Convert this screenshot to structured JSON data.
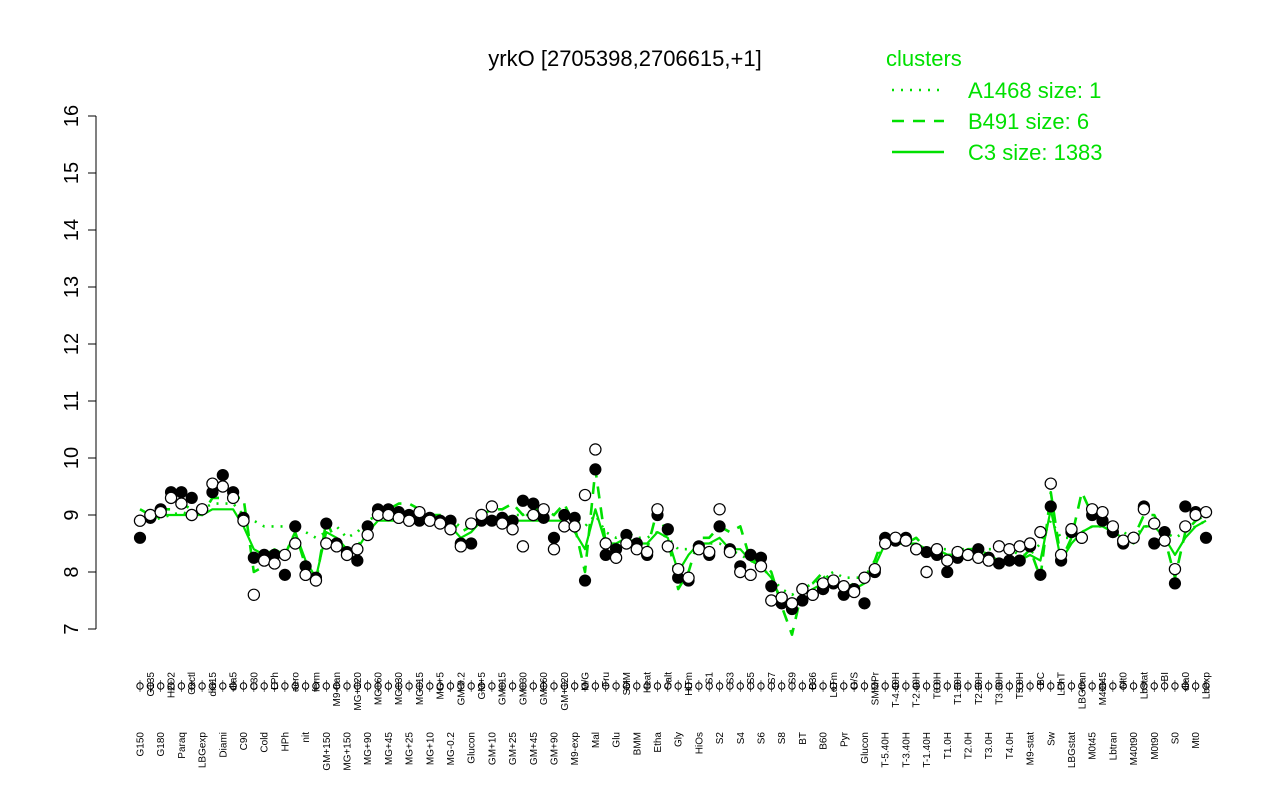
{
  "chart_data": {
    "type": "line",
    "title": "yrkO [2705398,2706615,+1]",
    "ylim": [
      7,
      16
    ],
    "yticks": [
      7,
      8,
      9,
      10,
      11,
      12,
      13,
      14,
      15,
      16
    ],
    "grid": false,
    "x_tick_labels": [
      "G150",
      "G135",
      "G180",
      "H2O2",
      "Paraq",
      "Oxctl",
      "LBGexp",
      "dia15",
      "Diami",
      "dia5",
      "C90",
      "C30",
      "Cold",
      "LPh",
      "HPh",
      "aero",
      "nit",
      "ferm",
      "GM+150",
      "M9-tran",
      "MG+150",
      "MG+120",
      "MG+90",
      "MG+60",
      "MG+45",
      "MG+30",
      "MG+25",
      "MG+15",
      "MG+10",
      "MG+5",
      "MG-0.2",
      "GM-0.2",
      "Glucon",
      "GM+5",
      "GM+10",
      "GM+15",
      "GM+25",
      "GM+30",
      "GM+45",
      "GM+60",
      "GM+90",
      "GM+120",
      "M9-exp",
      "M/G",
      "Mal",
      "Fru",
      "Glu",
      "SMM",
      "BMM",
      "Heat",
      "Etha",
      "Salt",
      "Gly",
      "HiTm",
      "HiOs",
      "S1",
      "S2",
      "S3",
      "S4",
      "S5",
      "S6",
      "S7",
      "S8",
      "S9",
      "BT",
      "B36",
      "B60",
      "LoTm",
      "Pyr",
      "G/S",
      "Glucon",
      "SMMPr",
      "T-5.40H",
      "T-4.40H",
      "T-3.40H",
      "T-2.40H",
      "T-1.40H",
      "T0.0H",
      "T1.0H",
      "T1.30H",
      "T2.0H",
      "T2.30H",
      "T3.0H",
      "T3.30H",
      "T4.0H",
      "T5.0H",
      "M9-stat",
      "BC",
      "Sw",
      "LPhT",
      "LBGstat",
      "LBGtran",
      "M0t45",
      "M40t45",
      "Lbtran",
      "Mt0",
      "M40t90",
      "Lbstat",
      "M0t90",
      "BI",
      "S0",
      "dia0",
      "Mt0",
      "Lbexp"
    ],
    "series": [
      {
        "name": "A1468 size: 1",
        "style": "dotted",
        "values": [
          8.9,
          8.9,
          8.95,
          9.0,
          9.05,
          9.0,
          9.1,
          9.2,
          9.2,
          9.2,
          9.0,
          8.9,
          8.8,
          8.8,
          8.8,
          8.8,
          8.7,
          8.6,
          8.7,
          8.8,
          8.6,
          8.7,
          8.9,
          9.0,
          9.0,
          9.0,
          9.0,
          9.0,
          8.9,
          8.9,
          8.9,
          8.8,
          8.8,
          8.9,
          8.9,
          8.9,
          9.0,
          9.0,
          9.0,
          9.0,
          9.0,
          9.0,
          8.9,
          8.8,
          9.0,
          8.7,
          8.6,
          8.7,
          8.6,
          8.6,
          8.7,
          8.6,
          8.4,
          8.4,
          8.5,
          8.5,
          8.5,
          8.4,
          8.3,
          8.2,
          8.1,
          7.9,
          7.7,
          7.6,
          7.7,
          7.8,
          7.9,
          8.0,
          7.9,
          7.9,
          7.9,
          8.2,
          8.5,
          8.5,
          8.5,
          8.5,
          8.4,
          8.4,
          8.4,
          8.4,
          8.4,
          8.4,
          8.4,
          8.4,
          8.4,
          8.3,
          8.3,
          8.5,
          8.9,
          8.6,
          8.6,
          8.7,
          8.8,
          8.8,
          8.8,
          8.7,
          8.6,
          8.8,
          8.8,
          8.7,
          8.6,
          8.7,
          8.8,
          8.9
        ]
      },
      {
        "name": "B491 size: 6",
        "style": "dashed",
        "values": [
          9.1,
          9.0,
          9.1,
          9.1,
          9.2,
          9.1,
          9.0,
          9.3,
          9.3,
          9.3,
          9.3,
          8.0,
          8.1,
          8.3,
          8.3,
          8.7,
          8.1,
          7.8,
          8.9,
          8.5,
          8.4,
          8.4,
          8.9,
          9.1,
          9.1,
          9.2,
          9.2,
          9.1,
          9.0,
          9.0,
          8.9,
          8.7,
          8.8,
          9.0,
          9.1,
          9.1,
          9.2,
          9.0,
          9.1,
          9.1,
          9.0,
          9.2,
          8.8,
          8.0,
          9.8,
          8.5,
          8.4,
          8.6,
          8.4,
          8.4,
          9.1,
          8.6,
          7.7,
          8.0,
          8.6,
          8.6,
          8.8,
          8.7,
          8.8,
          8.2,
          8.2,
          8.0,
          7.4,
          6.9,
          7.7,
          7.8,
          8.0,
          7.8,
          7.7,
          7.8,
          7.9,
          8.2,
          8.7,
          8.5,
          8.5,
          8.6,
          8.4,
          8.4,
          8.3,
          8.3,
          8.4,
          8.4,
          8.3,
          8.2,
          8.2,
          8.2,
          8.4,
          7.9,
          9.4,
          8.2,
          8.6,
          9.4,
          9.0,
          9.0,
          8.8,
          8.6,
          8.6,
          9.0,
          9.0,
          8.6,
          7.9,
          8.7,
          8.9,
          9.0
        ]
      },
      {
        "name": "C3 size: 1383",
        "style": "solid",
        "values": [
          8.9,
          8.9,
          9.0,
          9.0,
          9.0,
          9.0,
          9.0,
          9.1,
          9.1,
          9.1,
          8.8,
          8.4,
          8.3,
          8.4,
          8.3,
          8.7,
          8.2,
          7.9,
          8.7,
          8.6,
          8.4,
          8.4,
          8.7,
          8.9,
          8.9,
          8.9,
          8.9,
          8.9,
          8.9,
          8.9,
          8.8,
          8.6,
          8.7,
          8.9,
          8.9,
          8.9,
          8.9,
          8.9,
          8.9,
          8.9,
          8.9,
          8.9,
          8.7,
          8.4,
          9.1,
          8.5,
          8.5,
          8.6,
          8.5,
          8.5,
          8.7,
          8.6,
          8.0,
          8.3,
          8.5,
          8.5,
          8.6,
          8.4,
          8.4,
          8.2,
          8.1,
          7.9,
          7.5,
          7.4,
          7.6,
          7.7,
          7.8,
          7.8,
          7.7,
          7.7,
          7.8,
          8.1,
          8.5,
          8.5,
          8.5,
          8.5,
          8.4,
          8.4,
          8.3,
          8.3,
          8.3,
          8.3,
          8.3,
          8.2,
          8.2,
          8.2,
          8.3,
          8.2,
          9.1,
          8.2,
          8.5,
          8.7,
          8.8,
          8.8,
          8.7,
          8.6,
          8.5,
          8.8,
          8.8,
          8.6,
          8.3,
          8.6,
          8.8,
          8.9
        ]
      }
    ],
    "points": {
      "filled": [
        [
          0,
          8.6
        ],
        [
          1,
          8.95
        ],
        [
          2,
          9.1
        ],
        [
          3,
          9.4
        ],
        [
          4,
          9.4
        ],
        [
          5,
          9.3
        ],
        [
          6,
          9.1
        ],
        [
          7,
          9.4
        ],
        [
          8,
          9.7
        ],
        [
          9,
          9.4
        ],
        [
          10,
          8.95
        ],
        [
          11,
          8.25
        ],
        [
          12,
          8.3
        ],
        [
          13,
          8.3
        ],
        [
          14,
          7.95
        ],
        [
          15,
          8.8
        ],
        [
          16,
          8.1
        ],
        [
          17,
          7.9
        ],
        [
          18,
          8.85
        ],
        [
          19,
          8.5
        ],
        [
          20,
          8.35
        ],
        [
          21,
          8.2
        ],
        [
          22,
          8.8
        ],
        [
          23,
          9.1
        ],
        [
          24,
          9.1
        ],
        [
          25,
          9.05
        ],
        [
          26,
          9.0
        ],
        [
          27,
          8.9
        ],
        [
          28,
          8.95
        ],
        [
          29,
          8.9
        ],
        [
          30,
          8.9
        ],
        [
          31,
          8.5
        ],
        [
          32,
          8.5
        ],
        [
          33,
          8.9
        ],
        [
          34,
          8.9
        ],
        [
          35,
          8.95
        ],
        [
          36,
          8.9
        ],
        [
          37,
          9.25
        ],
        [
          38,
          9.2
        ],
        [
          39,
          8.95
        ],
        [
          40,
          8.6
        ],
        [
          41,
          9.0
        ],
        [
          42,
          8.95
        ],
        [
          43,
          7.85
        ],
        [
          44,
          9.8
        ],
        [
          45,
          8.3
        ],
        [
          46,
          8.4
        ],
        [
          47,
          8.65
        ],
        [
          48,
          8.5
        ],
        [
          49,
          8.3
        ],
        [
          50,
          9.0
        ],
        [
          51,
          8.75
        ],
        [
          52,
          7.9
        ],
        [
          53,
          7.85
        ],
        [
          54,
          8.45
        ],
        [
          55,
          8.3
        ],
        [
          56,
          8.8
        ],
        [
          57,
          8.4
        ],
        [
          58,
          8.1
        ],
        [
          59,
          8.3
        ],
        [
          60,
          8.25
        ],
        [
          61,
          7.75
        ],
        [
          62,
          7.45
        ],
        [
          63,
          7.35
        ],
        [
          64,
          7.5
        ],
        [
          65,
          7.6
        ],
        [
          66,
          7.7
        ],
        [
          67,
          7.8
        ],
        [
          68,
          7.6
        ],
        [
          69,
          7.7
        ],
        [
          70,
          7.45
        ],
        [
          71,
          8.0
        ],
        [
          72,
          8.6
        ],
        [
          73,
          8.55
        ],
        [
          74,
          8.6
        ],
        [
          75,
          8.4
        ],
        [
          76,
          8.35
        ],
        [
          77,
          8.3
        ],
        [
          78,
          8.0
        ],
        [
          79,
          8.25
        ],
        [
          80,
          8.3
        ],
        [
          81,
          8.4
        ],
        [
          82,
          8.25
        ],
        [
          83,
          8.15
        ],
        [
          84,
          8.2
        ],
        [
          85,
          8.2
        ],
        [
          86,
          8.45
        ],
        [
          87,
          7.95
        ],
        [
          88,
          9.15
        ],
        [
          89,
          8.2
        ],
        [
          90,
          8.7
        ],
        [
          91,
          8.6
        ],
        [
          92,
          9.0
        ],
        [
          93,
          8.9
        ],
        [
          94,
          8.7
        ],
        [
          95,
          8.5
        ],
        [
          96,
          8.6
        ],
        [
          97,
          9.15
        ],
        [
          98,
          8.5
        ],
        [
          99,
          8.7
        ],
        [
          100,
          7.8
        ],
        [
          101,
          9.15
        ],
        [
          102,
          9.05
        ],
        [
          103,
          8.6
        ]
      ],
      "open": [
        [
          0,
          8.9
        ],
        [
          1,
          9.0
        ],
        [
          2,
          9.05
        ],
        [
          3,
          9.3
        ],
        [
          4,
          9.2
        ],
        [
          5,
          9.0
        ],
        [
          6,
          9.1
        ],
        [
          7,
          9.55
        ],
        [
          8,
          9.5
        ],
        [
          9,
          9.3
        ],
        [
          10,
          8.9
        ],
        [
          11,
          7.6
        ],
        [
          12,
          8.2
        ],
        [
          13,
          8.15
        ],
        [
          14,
          8.3
        ],
        [
          15,
          8.5
        ],
        [
          16,
          7.95
        ],
        [
          17,
          7.85
        ],
        [
          18,
          8.5
        ],
        [
          19,
          8.45
        ],
        [
          20,
          8.3
        ],
        [
          21,
          8.4
        ],
        [
          22,
          8.65
        ],
        [
          23,
          9.0
        ],
        [
          24,
          9.0
        ],
        [
          25,
          8.95
        ],
        [
          26,
          8.9
        ],
        [
          27,
          9.05
        ],
        [
          28,
          8.9
        ],
        [
          29,
          8.85
        ],
        [
          30,
          8.75
        ],
        [
          31,
          8.45
        ],
        [
          32,
          8.85
        ],
        [
          33,
          9.0
        ],
        [
          34,
          9.15
        ],
        [
          35,
          8.85
        ],
        [
          36,
          8.75
        ],
        [
          37,
          8.45
        ],
        [
          38,
          9.0
        ],
        [
          39,
          9.1
        ],
        [
          40,
          8.4
        ],
        [
          41,
          8.8
        ],
        [
          42,
          8.8
        ],
        [
          43,
          9.35
        ],
        [
          44,
          10.15
        ],
        [
          45,
          8.5
        ],
        [
          46,
          8.25
        ],
        [
          47,
          8.5
        ],
        [
          48,
          8.4
        ],
        [
          49,
          8.35
        ],
        [
          50,
          9.1
        ],
        [
          51,
          8.45
        ],
        [
          52,
          8.05
        ],
        [
          53,
          7.9
        ],
        [
          54,
          8.4
        ],
        [
          55,
          8.35
        ],
        [
          56,
          9.1
        ],
        [
          57,
          8.35
        ],
        [
          58,
          8.0
        ],
        [
          59,
          7.95
        ],
        [
          60,
          8.1
        ],
        [
          61,
          7.5
        ],
        [
          62,
          7.55
        ],
        [
          63,
          7.45
        ],
        [
          64,
          7.7
        ],
        [
          65,
          7.6
        ],
        [
          66,
          7.8
        ],
        [
          67,
          7.85
        ],
        [
          68,
          7.75
        ],
        [
          69,
          7.65
        ],
        [
          70,
          7.9
        ],
        [
          71,
          8.05
        ],
        [
          72,
          8.5
        ],
        [
          73,
          8.6
        ],
        [
          74,
          8.55
        ],
        [
          75,
          8.4
        ],
        [
          76,
          8.0
        ],
        [
          77,
          8.4
        ],
        [
          78,
          8.2
        ],
        [
          79,
          8.35
        ],
        [
          80,
          8.3
        ],
        [
          81,
          8.25
        ],
        [
          82,
          8.2
        ],
        [
          83,
          8.45
        ],
        [
          84,
          8.4
        ],
        [
          85,
          8.45
        ],
        [
          86,
          8.5
        ],
        [
          87,
          8.7
        ],
        [
          88,
          9.55
        ],
        [
          89,
          8.3
        ],
        [
          90,
          8.75
        ],
        [
          91,
          8.6
        ],
        [
          92,
          9.1
        ],
        [
          93,
          9.05
        ],
        [
          94,
          8.8
        ],
        [
          95,
          8.55
        ],
        [
          96,
          8.6
        ],
        [
          97,
          9.1
        ],
        [
          98,
          8.85
        ],
        [
          99,
          8.55
        ],
        [
          100,
          8.05
        ],
        [
          101,
          8.8
        ],
        [
          102,
          9.0
        ],
        [
          103,
          9.05
        ]
      ]
    },
    "legend": {
      "title": "clusters",
      "position": "top-right",
      "color": "#00e000"
    },
    "colors": {
      "line": "#00e000",
      "axis": "#000000",
      "point_stroke": "#000000",
      "point_fill_open": "#ffffff",
      "point_fill_filled": "#000000"
    }
  }
}
